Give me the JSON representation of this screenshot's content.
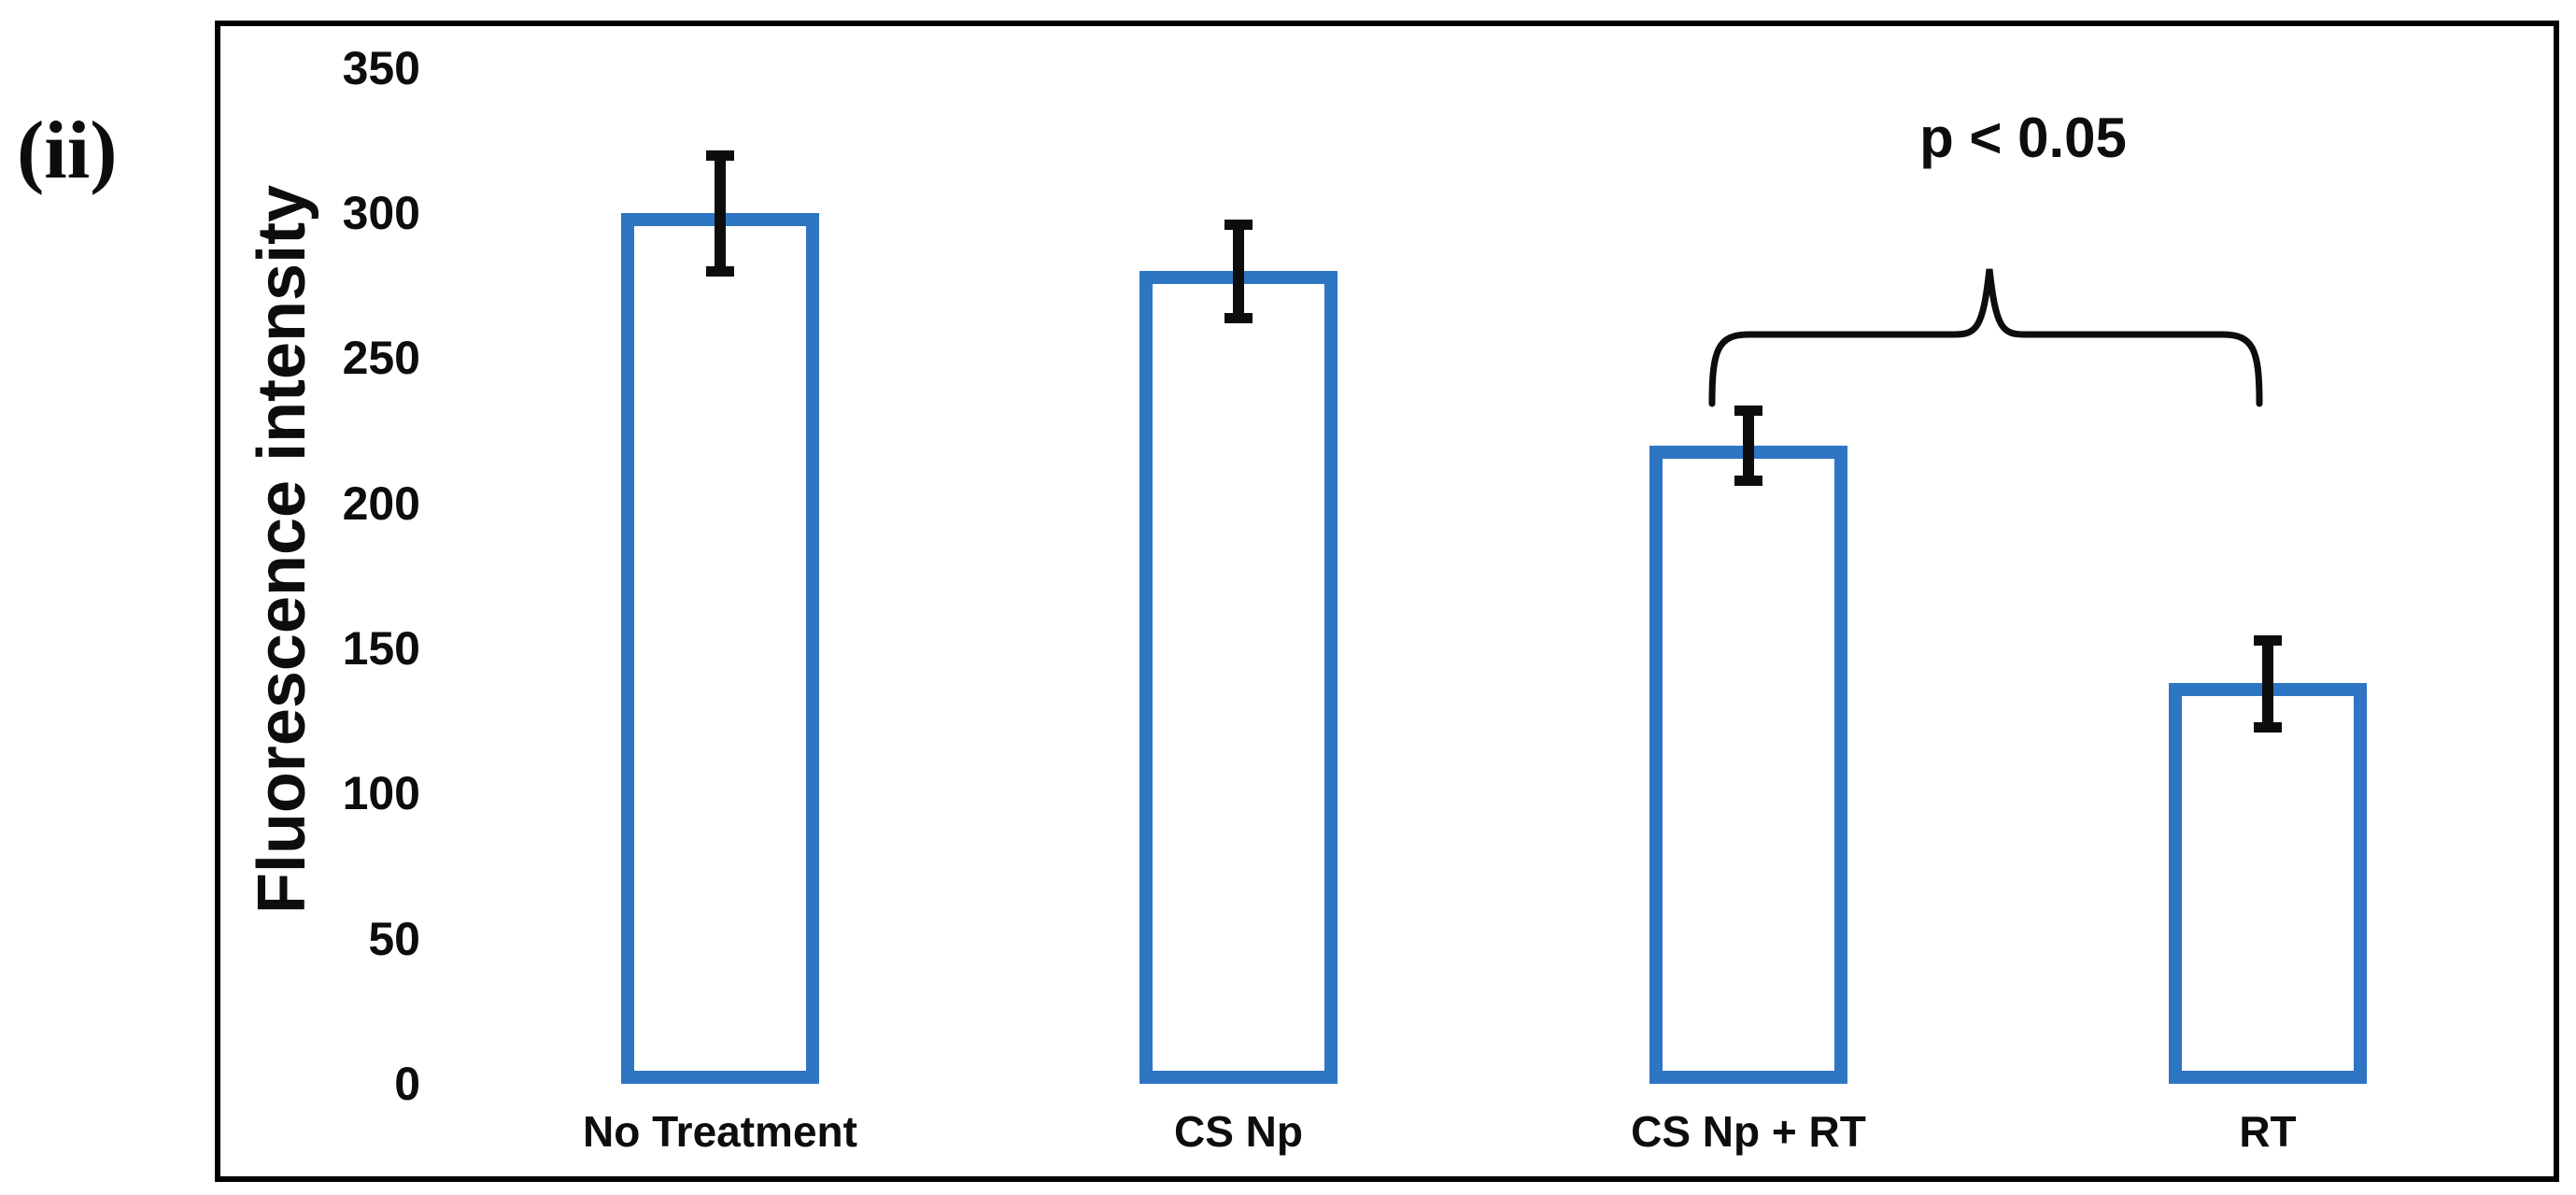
{
  "figure": {
    "panel_label": "(ii)",
    "background_color": "#ffffff",
    "frame_color": "#000000"
  },
  "annotation": {
    "significance_label": "p < 0.05",
    "bracket_between": [
      "CS Np + RT",
      "RT"
    ]
  },
  "chart_data": {
    "type": "bar",
    "title": "",
    "xlabel": "",
    "ylabel": "Fluorescence intensity",
    "categories": [
      "No Treatment",
      "CS Np",
      "CS Np + RT",
      "RT"
    ],
    "values": [
      300,
      280,
      220,
      138
    ],
    "error_bars": [
      20,
      16,
      12,
      15
    ],
    "yticks": [
      0,
      50,
      100,
      150,
      200,
      250,
      300,
      350
    ],
    "ylim": [
      0,
      350
    ],
    "grid": false,
    "legend": "none",
    "bar_fill": "#ffffff",
    "bar_border_color": "#2e75c3",
    "error_bar_color": "#0d0d0d",
    "text_color": "#0d0d0d"
  }
}
